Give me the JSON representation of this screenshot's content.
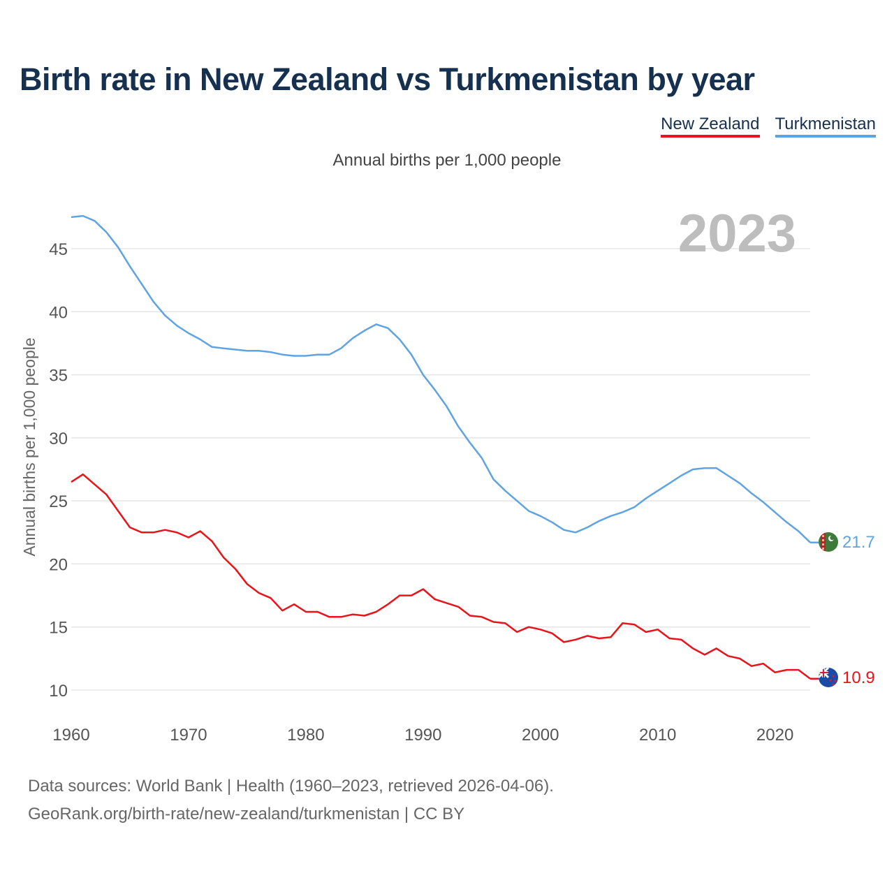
{
  "title": "Birth rate in New Zealand vs Turkmenistan by year",
  "subtitle": "Annual births per 1,000 people",
  "legend": [
    {
      "label": "New Zealand",
      "color": "#e8141a"
    },
    {
      "label": "Turkmenistan",
      "color": "#5fa4e2"
    }
  ],
  "year_overlay": "2023",
  "end_labels": {
    "new_zealand": "10.9",
    "turkmenistan": "21.7"
  },
  "source": {
    "line1": "Data sources: World Bank | Health (1960–2023, retrieved 2026-04-06).",
    "line2": "GeoRank.org/birth-rate/new-zealand/turkmenistan | CC BY"
  },
  "chart_data": {
    "type": "line",
    "title": "Birth rate in New Zealand vs Turkmenistan by year",
    "xlabel": "",
    "ylabel": "Annual births per 1,000 people",
    "xlim": [
      1960,
      2023
    ],
    "ylim": [
      8,
      48
    ],
    "yticks": [
      10,
      15,
      20,
      25,
      30,
      35,
      40,
      45
    ],
    "xticks": [
      1960,
      1970,
      1980,
      1990,
      2000,
      2010,
      2020
    ],
    "grid": true,
    "legend_position": "top-right",
    "x": [
      1960,
      1961,
      1962,
      1963,
      1964,
      1965,
      1966,
      1967,
      1968,
      1969,
      1970,
      1971,
      1972,
      1973,
      1974,
      1975,
      1976,
      1977,
      1978,
      1979,
      1980,
      1981,
      1982,
      1983,
      1984,
      1985,
      1986,
      1987,
      1988,
      1989,
      1990,
      1991,
      1992,
      1993,
      1994,
      1995,
      1996,
      1997,
      1998,
      1999,
      2000,
      2001,
      2002,
      2003,
      2004,
      2005,
      2006,
      2007,
      2008,
      2009,
      2010,
      2011,
      2012,
      2013,
      2014,
      2015,
      2016,
      2017,
      2018,
      2019,
      2020,
      2021,
      2022,
      2023
    ],
    "series": [
      {
        "name": "New Zealand",
        "color": "#e8141a",
        "values": [
          26.5,
          27.1,
          26.3,
          25.5,
          24.2,
          22.9,
          22.5,
          22.5,
          22.7,
          22.5,
          22.1,
          22.6,
          21.8,
          20.5,
          19.6,
          18.4,
          17.7,
          17.3,
          16.3,
          16.8,
          16.2,
          16.2,
          15.8,
          15.8,
          16.0,
          15.9,
          16.2,
          16.8,
          17.5,
          17.5,
          18.0,
          17.2,
          16.9,
          16.6,
          15.9,
          15.8,
          15.4,
          15.3,
          14.6,
          15.0,
          14.8,
          14.5,
          13.8,
          14.0,
          14.3,
          14.1,
          14.2,
          15.3,
          15.2,
          14.6,
          14.8,
          14.1,
          14.0,
          13.3,
          12.8,
          13.3,
          12.7,
          12.5,
          11.9,
          12.1,
          11.4,
          11.6,
          11.6,
          10.9
        ]
      },
      {
        "name": "Turkmenistan",
        "color": "#5fa4e2",
        "values": [
          47.5,
          47.6,
          47.2,
          46.3,
          45.1,
          43.6,
          42.2,
          40.8,
          39.7,
          38.9,
          38.3,
          37.8,
          37.2,
          37.1,
          37.0,
          36.9,
          36.9,
          36.8,
          36.6,
          36.5,
          36.5,
          36.6,
          36.6,
          37.1,
          37.9,
          38.5,
          39.0,
          38.7,
          37.8,
          36.6,
          35.0,
          33.8,
          32.5,
          30.9,
          29.6,
          28.4,
          26.7,
          25.8,
          25.0,
          24.2,
          23.8,
          23.3,
          22.7,
          22.5,
          22.9,
          23.4,
          23.8,
          24.1,
          24.5,
          25.2,
          25.8,
          26.4,
          27.0,
          27.5,
          27.6,
          27.6,
          27.0,
          26.4,
          25.6,
          24.9,
          24.1,
          23.3,
          22.6,
          21.7
        ]
      }
    ]
  }
}
